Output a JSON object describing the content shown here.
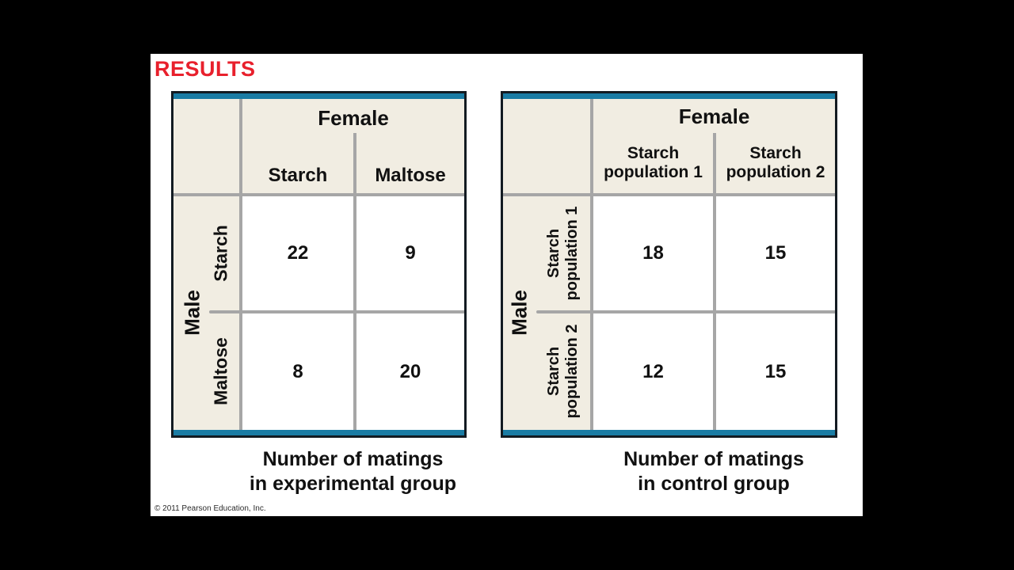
{
  "page": {
    "results_label": "RESULTS",
    "copyright": "© 2011 Pearson Education, Inc."
  },
  "colors": {
    "teal_bar": "#1A7CA4",
    "cream_band": "#F1EDE2",
    "grid_gray": "#A6A6A6",
    "results_red": "#E8202C",
    "table_border": "#131B22"
  },
  "chart_data": [
    {
      "type": "table",
      "title": "Number of matings in experimental group",
      "column_group": "Female",
      "row_group": "Male",
      "columns": [
        "Starch",
        "Maltose"
      ],
      "rows": [
        "Starch",
        "Maltose"
      ],
      "values": [
        [
          22,
          9
        ],
        [
          8,
          20
        ]
      ]
    },
    {
      "type": "table",
      "title": "Number of matings in control group",
      "column_group": "Female",
      "row_group": "Male",
      "columns": [
        "Starch population 1",
        "Starch population 2"
      ],
      "rows": [
        "Starch population 1",
        "Starch population 2"
      ],
      "values": [
        [
          18,
          15
        ],
        [
          12,
          15
        ]
      ]
    }
  ],
  "display": {
    "left_caption": {
      "line1": "Number of matings",
      "line2": "in experimental group"
    },
    "right_caption": {
      "line1": "Number of matings",
      "line2": "in control group"
    },
    "right": {
      "col1_line1": "Starch",
      "col1_line2": "population 1",
      "col2_line1": "Starch",
      "col2_line2": "population 2",
      "row1_line1": "Starch",
      "row1_line2": "population 1",
      "row2_line1": "Starch",
      "row2_line2": "population 2"
    }
  }
}
